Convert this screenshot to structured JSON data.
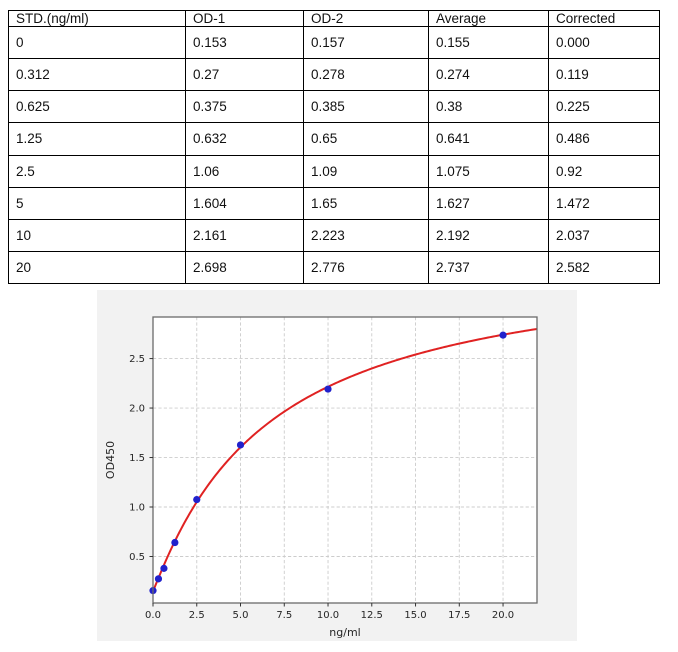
{
  "table": {
    "headers": [
      "STD.(ng/ml)",
      "OD-1",
      "OD-2",
      "Average",
      "Corrected"
    ],
    "rows": [
      [
        "0",
        "0.153",
        "0.157",
        "0.155",
        "0.000"
      ],
      [
        "0.312",
        "0.27",
        "0.278",
        "0.274",
        "0.119"
      ],
      [
        "0.625",
        "0.375",
        "0.385",
        "0.38",
        "0.225"
      ],
      [
        "1.25",
        "0.632",
        "0.65",
        "0.641",
        "0.486"
      ],
      [
        "2.5",
        "1.06",
        "1.09",
        "1.075",
        "0.92"
      ],
      [
        "5",
        "1.604",
        "1.65",
        "1.627",
        "1.472"
      ],
      [
        "10",
        "2.161",
        "2.223",
        "2.192",
        "2.037"
      ],
      [
        "20",
        "2.698",
        "2.776",
        "2.737",
        "2.582"
      ]
    ]
  },
  "chart_data": {
    "type": "scatter",
    "title": "",
    "xlabel": "ng/ml",
    "ylabel": "OD450",
    "x": [
      0,
      0.312,
      0.625,
      1.25,
      2.5,
      5,
      10,
      20
    ],
    "y": [
      0.155,
      0.274,
      0.38,
      0.641,
      1.075,
      1.627,
      2.192,
      2.737
    ],
    "series": [
      {
        "name": "standard-points",
        "type": "scatter",
        "color": "#2121cc"
      },
      {
        "name": "4pl-fit-curve",
        "type": "line",
        "color": "#e02222"
      }
    ],
    "fit_4pl": {
      "a": 0.15,
      "b": 1.05,
      "c": 6.6,
      "d": 3.55
    },
    "xlim": [
      0,
      21.94
    ],
    "ylim": [
      0.03,
      2.92
    ],
    "xticks": [
      0,
      2.5,
      5,
      7.5,
      10,
      12.5,
      15,
      17.5,
      20
    ],
    "xtick_labels": [
      "0.0",
      "2.5",
      "5.0",
      "7.5",
      "10.0",
      "12.5",
      "15.0",
      "17.5",
      "20.0"
    ],
    "yticks": [
      0.5,
      1.0,
      1.5,
      2.0,
      2.5
    ],
    "ytick_labels": [
      "0.5",
      "1.0",
      "1.5",
      "2.0",
      "2.5"
    ],
    "grid": true,
    "legend": "none",
    "marker_radius": 3.6,
    "colors": {
      "figure_bg": "#f2f2f2",
      "plot_bg": "#ffffff",
      "grid": "#cccccc",
      "spine": "#6a6a6a",
      "tick_text": "#262626"
    }
  }
}
